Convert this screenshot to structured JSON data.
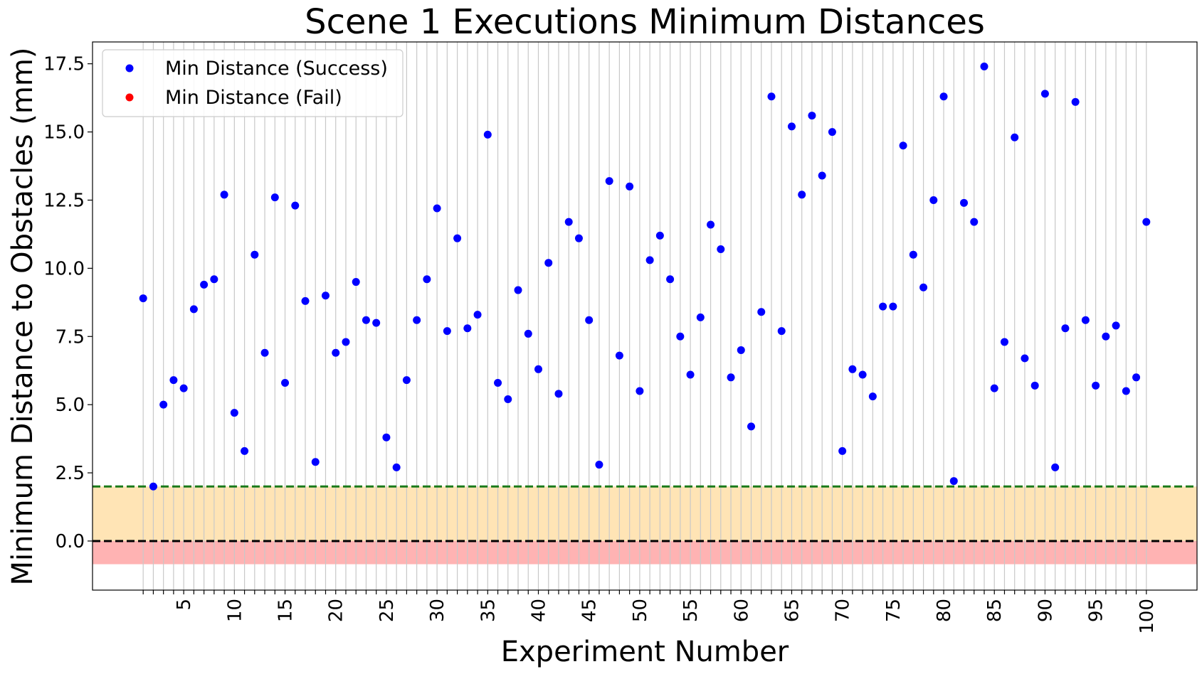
{
  "chart_data": {
    "type": "scatter",
    "title": "Scene 1 Executions Minimum Distances",
    "xlabel": "Experiment Number",
    "ylabel": "Minimum Distance to Obstacles (mm)",
    "xlim": [
      -4,
      105
    ],
    "ylim": [
      -1.8,
      18.3
    ],
    "yticks": [
      0.0,
      2.5,
      5.0,
      7.5,
      10.0,
      12.5,
      15.0,
      17.5
    ],
    "ytick_labels": [
      "0.0",
      "2.5",
      "5.0",
      "7.5",
      "10.0",
      "12.5",
      "15.0",
      "17.5"
    ],
    "xticks": [
      5,
      10,
      15,
      20,
      25,
      30,
      35,
      40,
      45,
      50,
      55,
      60,
      65,
      70,
      75,
      80,
      85,
      90,
      95,
      100
    ],
    "xtick_labels": [
      "5",
      "10",
      "15",
      "20",
      "25",
      "30",
      "35",
      "40",
      "45",
      "50",
      "55",
      "60",
      "65",
      "70",
      "75",
      "80",
      "85",
      "90",
      "95",
      "100"
    ],
    "grid": "vertical lines at each experiment",
    "legend_position": "top-left",
    "colors": {
      "success": "#0000ff",
      "fail": "#ff0000",
      "warning_band": "#ffe4b5",
      "fail_band": "#ffb3b3",
      "threshold_line": "#1a7a1a",
      "zero_line": "#000000",
      "grid": "#c8c8c8"
    },
    "bands": [
      {
        "from": 0.0,
        "to": 2.0,
        "color": "#ffe4b5"
      },
      {
        "from": -0.85,
        "to": 0.0,
        "color": "#ffb3b3"
      }
    ],
    "reference_lines": [
      {
        "y": 2.0,
        "style": "dashed",
        "color": "#1a7a1a"
      },
      {
        "y": 0.0,
        "style": "dashed",
        "color": "#000000"
      }
    ],
    "series": [
      {
        "name": "Min Distance (Success)",
        "color": "#0000ff",
        "x": [
          1,
          2,
          3,
          4,
          5,
          6,
          7,
          8,
          9,
          10,
          11,
          12,
          13,
          14,
          15,
          16,
          17,
          18,
          19,
          20,
          21,
          22,
          23,
          24,
          25,
          26,
          27,
          28,
          29,
          30,
          31,
          32,
          33,
          34,
          35,
          36,
          37,
          38,
          39,
          40,
          41,
          42,
          43,
          44,
          45,
          46,
          47,
          48,
          49,
          50,
          51,
          52,
          53,
          54,
          55,
          56,
          57,
          58,
          59,
          60,
          61,
          62,
          63,
          64,
          65,
          66,
          67,
          68,
          69,
          70,
          71,
          72,
          73,
          74,
          75,
          76,
          77,
          78,
          79,
          80,
          81,
          82,
          83,
          84,
          85,
          86,
          87,
          88,
          89,
          90,
          91,
          92,
          93,
          94,
          95,
          96,
          97,
          98,
          99,
          100
        ],
        "y": [
          8.9,
          2.0,
          5.0,
          5.9,
          5.6,
          8.5,
          9.4,
          9.6,
          12.7,
          4.7,
          3.3,
          10.5,
          6.9,
          12.6,
          5.8,
          12.3,
          8.8,
          2.9,
          9.0,
          6.9,
          7.3,
          9.5,
          8.1,
          8.0,
          3.8,
          2.7,
          5.9,
          8.1,
          9.6,
          12.2,
          7.7,
          11.1,
          7.8,
          8.3,
          14.9,
          5.8,
          5.2,
          9.2,
          7.6,
          6.3,
          10.2,
          5.4,
          11.7,
          11.1,
          8.1,
          2.8,
          13.2,
          6.8,
          13.0,
          5.5,
          10.3,
          11.2,
          9.6,
          7.5,
          6.1,
          8.2,
          11.6,
          10.7,
          6.0,
          7.0,
          4.2,
          8.4,
          16.3,
          7.7,
          15.2,
          12.7,
          15.6,
          13.4,
          15.0,
          3.3,
          6.3,
          6.1,
          5.3,
          8.6,
          8.6,
          14.5,
          10.5,
          9.3,
          12.5,
          16.3,
          2.2,
          12.4,
          11.7,
          17.4,
          5.6,
          7.3,
          14.8,
          6.7,
          5.7,
          16.4,
          2.7,
          7.8,
          16.1,
          8.1,
          5.7,
          7.5,
          7.9,
          5.5,
          6.0,
          11.7
        ]
      },
      {
        "name": "Min Distance (Fail)",
        "color": "#ff0000",
        "x": [],
        "y": []
      }
    ]
  }
}
